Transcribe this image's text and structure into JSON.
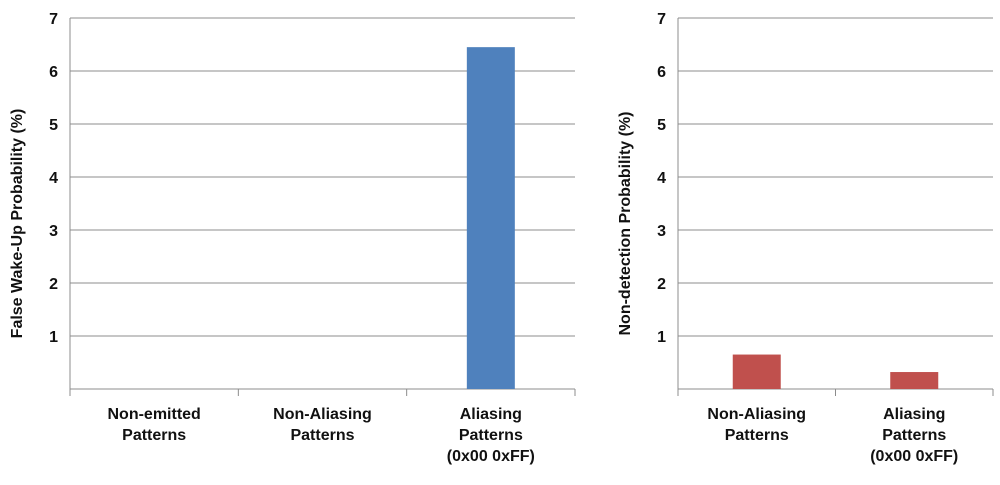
{
  "chart_data": [
    {
      "type": "bar",
      "title": "",
      "xlabel": "",
      "ylabel": "False Wake-Up Probability (%)",
      "ylim": [
        0,
        7
      ],
      "yticks": [
        1,
        2,
        3,
        4,
        5,
        6,
        7
      ],
      "categories": [
        [
          "Non-emitted",
          "Patterns"
        ],
        [
          "Non-Aliasing",
          "Patterns"
        ],
        [
          "Aliasing",
          "Patterns",
          "(0x00 0xFF)"
        ]
      ],
      "values": [
        0,
        0,
        6.45
      ],
      "bar_color": "#4f81bd",
      "grid": true
    },
    {
      "type": "bar",
      "title": "",
      "xlabel": "",
      "ylabel": "Non-detection Probability (%)",
      "ylim": [
        0,
        7
      ],
      "yticks": [
        1,
        2,
        3,
        4,
        5,
        6,
        7
      ],
      "categories": [
        [
          "Non-Aliasing",
          "Patterns"
        ],
        [
          "Aliasing",
          "Patterns",
          "(0x00 0xFF)"
        ]
      ],
      "values": [
        0.65,
        0.32
      ],
      "bar_color": "#c0504d",
      "grid": true
    }
  ]
}
